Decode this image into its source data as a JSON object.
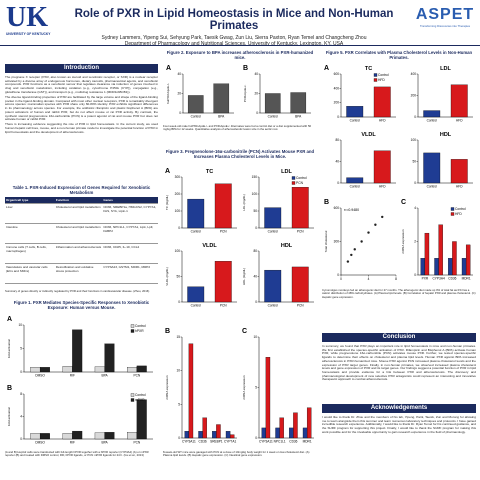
{
  "header": {
    "logo_mark": "UK",
    "logo_text": "UNIVERSITY OF KENTUCKY",
    "title": "Role of PXR in Lipid Homeostasis in Mice and Non-Human Primates",
    "authors": "Sydney Lammers, Yipeng Sui, Sehyung Park, Taesik Gwag, Zun Liu, Sierra Paxton, Ryan Temel and Changcheng Zhou",
    "affiliation": "Department of Pharmacology and Nutritional Sciences, University of Kentucky, Lexington, KY, USA",
    "right_logo": "ASPET",
    "right_logo_sub": "Transforming Discoveries into Therapies"
  },
  "introduction": {
    "heading": "Introduction",
    "paragraphs": [
      "The pregnane X receptor (PXR, also known as steroid and xenobiotic receptor, or SXR) is a nuclear receptor activated by a diverse array of endogenous hormones, dietary steroids, pharmaceutical agents, and xenobiotic compounds. PXR functions as a xenobiotic sensor that regulates clearance via induction of genes involved in drug and xenobiotic metabolism, including oxidation (e.g., cytochrome P450s (CYP)), conjugation (e.g., glutathione transferase (GST)), and transport (e.g., multidrug resistance 1 (MDR1/ABCB1)).",
      "The diverse ligand-binding properties of PXR are facilitated by the large volume and shape of the ligand-binding pocket in the ligand-binding domain. Compared with most other nuclear receptors, PXR is remarkably divergent across species: mammalian species with PXR share only 60-80% identity. PXR exhibits significant differences in its pharmacology across species. For example, the antibiotic rifampicin and plastic bisphenol A (BPA) are potent activators of human and rabbit PXR, but do not affect mouse or rat PXR activity. By contrast, the synthetic steroid pregnenolone 16α-carbonitrile (PCN) is a potent agonist of rat and mouse PXR but does not activate human or rabbit PXR.",
      "There is increasing evidence suggesting the role of PXR in lipid homeostasis. In the current study, we used human hepatic cell lines, mouse, and a non-human primate model to investigate the potential function of PXR in lipid homeostasis and the development of atherosclerosis."
    ]
  },
  "table1": {
    "title": "Table 1. PXR-Induced Expression of Genes Required for Xenobiotic Metabolism",
    "header": [
      "Organ/cell type",
      "Function",
      "Genes"
    ],
    "rows": [
      [
        "Liver",
        "Cholesterol and lipid metabolism",
        "CD36, SREBP1a, HMGCS2, CYP7A1, FAS, SYA, Lipin-1"
      ],
      [
        "Intestine",
        "Cholesterol and lipid metabolism",
        "CD36, NPC1L1, CYP7A1, Lipk, LpF, FABP2"
      ],
      [
        "Immune cells (T cells, B cells, macrophages)",
        "Inflammation and atherosclerosis",
        "CD36, CD25, IL-10, CCL2"
      ],
      [
        "Vasculature and vascular cells (ECs and SMCs)",
        "Detoxification and oxidative stress protection",
        "CYP3A23, GSTM1, MDR1, MRP2"
      ]
    ],
    "note": "Summary of genes directly or indirectly regulated by PXR and their functions in cardiovascular disease. (Zhou, 2016)"
  },
  "figure1": {
    "title": "Figure 1. PXR Mediates Species-Specific Responses to Xenobiotic Exposure: Human versus Mouse.",
    "caption": "(A and B) HepG2 cells were transfected with full-length hPXR together with a hPXR reporter (CYP3A4) (A) or mPXR reporter (B) and treated with DMSO control, RIF, hPXR ligands, or PCN mPXR ligands for 24 h. (Gu et al., 2013)",
    "panels": [
      {
        "type": "bar",
        "label": "A",
        "ylabel": "Fold activation",
        "categories": [
          "DMSO",
          "RIF",
          "BPA",
          "PCN"
        ],
        "series": [
          {
            "name": "Control",
            "color": "#d9d9d9",
            "values": [
              1,
              1.2,
              1.1,
              1
            ]
          },
          {
            "name": "hPXR",
            "color": "#222222",
            "values": [
              1,
              9,
              6,
              1.3
            ]
          }
        ],
        "ylim": [
          0,
          10
        ],
        "yticks": [
          0,
          5,
          10
        ],
        "legend": true
      },
      {
        "type": "bar",
        "label": "B",
        "ylabel": "Fold activation",
        "categories": [
          "DMSO",
          "RIF",
          "BPA",
          "PCN"
        ],
        "series": [
          {
            "name": "Control",
            "color": "#d9d9d9",
            "values": [
              1,
              1,
              1.1,
              1.2
            ]
          },
          {
            "name": "mPXR",
            "color": "#222222",
            "values": [
              1,
              1.4,
              1.2,
              7
            ]
          }
        ],
        "ylim": [
          0,
          8
        ],
        "yticks": [
          0,
          4,
          8
        ],
        "legend": true
      }
    ]
  },
  "figure2": {
    "title": "Figure 2. Exposure to BPA increases atherosclerosis in PXR-humanized mice.",
    "caption": "Four-week-old male huPXR•ApoE-/- and PXR•ApoE-/- littermates were fed a control diet or a diet supplemented with 50 mg/kg BPA for 12 weeks. Quantitative analysis of atherosclerotic lesion size in the aortic root.",
    "panels": [
      {
        "type": "bar",
        "label": "A",
        "ylabel": "huPXR•ApoE-/-",
        "categories": [
          "Control",
          "BPA"
        ],
        "series": [
          {
            "name": "Lesion",
            "color": "#555555",
            "values": [
              18,
              30
            ]
          }
        ],
        "ylim": [
          0,
          40
        ],
        "yticks": [
          0,
          20,
          40
        ]
      },
      {
        "type": "bar",
        "label": "B",
        "ylabel": "PXR•ApoE-/-",
        "categories": [
          "Control",
          "BPA"
        ],
        "series": [
          {
            "name": "Lesion",
            "color": "#555555",
            "values": [
              20,
              21
            ]
          }
        ],
        "ylim": [
          0,
          40
        ],
        "yticks": [
          0,
          20,
          40
        ]
      }
    ]
  },
  "figure3": {
    "title": "Figure 3. Pregnenolone-16α-carbonitrile (PCN) Activates Mouse PXR and Increases Plasma Cholesterol Levels in Mice.",
    "panels": [
      {
        "type": "bar",
        "label": "A",
        "title": "TC",
        "ylabel": "TC (mg/dL)",
        "categories": [
          "Control",
          "PCN"
        ],
        "series": [
          {
            "name": "Control",
            "color": "#1f3c93",
            "values": [
              170,
              null
            ]
          },
          {
            "name": "PCN",
            "color": "#d7191c",
            "values": [
              null,
              260
            ]
          }
        ],
        "ylim": [
          0,
          300
        ],
        "yticks": [
          0,
          100,
          200,
          300
        ]
      },
      {
        "type": "bar",
        "label": "",
        "title": "LDL",
        "ylabel": "LDL (mg/dL)",
        "categories": [
          "Control",
          "PCN"
        ],
        "series": [
          {
            "name": "Control",
            "color": "#1f3c93",
            "values": [
              60,
              null
            ]
          },
          {
            "name": "PCN",
            "color": "#d7191c",
            "values": [
              null,
              120
            ]
          }
        ],
        "ylim": [
          0,
          150
        ],
        "yticks": [
          0,
          50,
          100,
          150
        ],
        "legend": true
      },
      {
        "type": "bar",
        "label": "",
        "title": "VLDL",
        "ylabel": "VLDL (mg/dL)",
        "categories": [
          "Control",
          "PCN"
        ],
        "series": [
          {
            "name": "Control",
            "color": "#1f3c93",
            "values": [
              30,
              null
            ]
          },
          {
            "name": "PCN",
            "color": "#d7191c",
            "values": [
              null,
              80
            ]
          }
        ],
        "ylim": [
          0,
          100
        ],
        "yticks": [
          0,
          50,
          100
        ]
      },
      {
        "type": "bar",
        "label": "",
        "title": "HDL",
        "ylabel": "HDL (mg/dL)",
        "categories": [
          "Control",
          "PCN"
        ],
        "series": [
          {
            "name": "Control",
            "color": "#1f3c93",
            "values": [
              50,
              null
            ]
          },
          {
            "name": "PCN",
            "color": "#d7191c",
            "values": [
              null,
              55
            ]
          }
        ],
        "ylim": [
          0,
          80
        ],
        "yticks": [
          0,
          40,
          80
        ]
      }
    ]
  },
  "figure4": {
    "caption": "8-week-old WT mice were gavaged with PCN at a dose of 10mg/kg body weight for 1 week on low-cholesterol diet. (A) Plasma lipid levels. (B) Hepatic gene expression. (C) Intestinal gene expression.",
    "panels": [
      {
        "type": "bar",
        "label": "B",
        "ylabel": "mRNA expression",
        "categories": [
          "CYP3A11",
          "CD36",
          "SREBP1",
          "CYP7A1"
        ],
        "series": [
          {
            "name": "Control",
            "color": "#1f3c93",
            "values": [
              1,
              1,
              1,
              1
            ]
          },
          {
            "name": "PCN",
            "color": "#d7191c",
            "values": [
              14,
              3,
              2,
              0.5
            ]
          }
        ],
        "ylim": [
          0,
          15
        ],
        "yticks": [
          0,
          5,
          10,
          15
        ]
      },
      {
        "type": "bar",
        "label": "C",
        "ylabel": "mRNA expression",
        "categories": [
          "CYP3A11",
          "NPC1L1",
          "CD36",
          "MDR1"
        ],
        "series": [
          {
            "name": "Control",
            "color": "#1f3c93",
            "values": [
              1,
              1,
              1,
              1
            ]
          },
          {
            "name": "PCN",
            "color": "#d7191c",
            "values": [
              8,
              2,
              2.5,
              3
            ]
          }
        ],
        "ylim": [
          0,
          10
        ],
        "yticks": [
          0,
          5,
          10
        ]
      }
    ]
  },
  "figure5": {
    "title": "Figure 5. PXR Correlates with Plasma Cholesterol Levels in Non-Human Primates.",
    "caption": "Cynomolgus monkeys fed an atherogenic diet for 27 months. The atherogenic diet made up 0% of total fat as 0% has a caloric distribution of 48% carbohydrates. (A) Plasma lipid levels. (B) Correlation of hepatic PXR and plasma cholesterol. (C) Hepatic gene expression.",
    "panels": [
      {
        "type": "bar",
        "label": "A",
        "title": "TC",
        "categories": [
          "Control",
          "HFD"
        ],
        "series": [
          {
            "name": "Control",
            "color": "#1f3c93",
            "values": [
              150,
              null
            ]
          },
          {
            "name": "HFD",
            "color": "#d7191c",
            "values": [
              null,
              420
            ]
          }
        ],
        "ylim": [
          0,
          600
        ],
        "yticks": [
          0,
          200,
          400,
          600
        ],
        "legend": true
      },
      {
        "type": "bar",
        "label": "",
        "title": "LDL",
        "categories": [
          "Control",
          "HFD"
        ],
        "series": [
          {
            "name": "Control",
            "color": "#1f3c93",
            "values": [
              60,
              null
            ]
          },
          {
            "name": "HFD",
            "color": "#d7191c",
            "values": [
              null,
              300
            ]
          }
        ],
        "ylim": [
          0,
          400
        ],
        "yticks": [
          0,
          200,
          400
        ]
      },
      {
        "type": "bar",
        "label": "",
        "title": "VLDL",
        "categories": [
          "Control",
          "HFD"
        ],
        "series": [
          {
            "name": "Control",
            "color": "#1f3c93",
            "values": [
              10,
              null
            ]
          },
          {
            "name": "HFD",
            "color": "#d7191c",
            "values": [
              null,
              60
            ]
          }
        ],
        "ylim": [
          0,
          80
        ],
        "yticks": [
          0,
          40,
          80
        ]
      },
      {
        "type": "bar",
        "label": "",
        "title": "HDL",
        "categories": [
          "Control",
          "HFD"
        ],
        "series": [
          {
            "name": "Control",
            "color": "#1f3c93",
            "values": [
              70,
              null
            ]
          },
          {
            "name": "HFD",
            "color": "#d7191c",
            "values": [
              null,
              55
            ]
          }
        ],
        "ylim": [
          0,
          100
        ],
        "yticks": [
          0,
          50,
          100
        ]
      },
      {
        "type": "scatter",
        "label": "B",
        "ylabel": "Total cholesterol",
        "annotation": "r²=0.9480",
        "x": [
          1,
          1.5,
          2,
          3,
          4,
          5,
          6
        ],
        "series": [
          {
            "name": "PXR",
            "color": "#222222",
            "values": [
              120,
              180,
              230,
              300,
              380,
              450,
              520
            ]
          }
        ],
        "xlim": [
          0,
          8
        ],
        "xticks": [
          0,
          4,
          8
        ],
        "ylim": [
          0,
          600
        ],
        "yticks": [
          0,
          300,
          600
        ]
      },
      {
        "type": "bar",
        "label": "C",
        "ylabel": "mRNA expression",
        "categories": [
          "PXR",
          "CYP3A4",
          "CD36",
          "MDR1"
        ],
        "series": [
          {
            "name": "Control",
            "color": "#1f3c93",
            "values": [
              1,
              1,
              1,
              1
            ]
          },
          {
            "name": "HFD",
            "color": "#d7191c",
            "values": [
              2.5,
              3,
              2,
              1.8
            ]
          }
        ],
        "ylim": [
          0,
          4
        ],
        "yticks": [
          0,
          2,
          4
        ],
        "legend": true
      }
    ]
  },
  "conclusion": {
    "heading": "Conclusion",
    "text": "In summary, we found that PXR plays an important role in lipid homeostasis in mice and non-human primates. We first established the species-specific activation of PXR. Rifampicin and Bisphenol A (BPA) activate human PXR, while pregnenolone 16α-carbonitrile (PCN) activates mouse PXR. Further, we tested species-specific ligands to determine their effects on cholesterol and plasma lipid levels. Human PXR agonist BPA increased atherosclerosis in PXR-humanized mice. Mouse PXR agonist PCN increased plasma cholesterol levels and the expression of PXR target genes. Finally, in non-human primates, we observed increased plasma cholesterol levels and gene expression of PXR and its target genes. Our findings suggest a potential function of PXR in lipid homeostasis and provide evidence for a link between PXR and atherosclerosis. The discovery and pharmacological development of new selective PXR antagonists could represent an interesting and innovative therapeutic approach to combat atherosclerosis."
  },
  "acknowledgements": {
    "heading": "Acknowledgements",
    "text": "I would like to thank Dr. Zhou and the members of his lab, Yipeng, Parik, Taesik, Zun and Murong for allowing me to learn alongside them this summer and learn numerous laboratory techniques and protocols. I have gained incredible research experience. Additionally, I would like to thank Dr. Ryan Temel for his continued guidance, and the SURF program for supporting this project. Finally, I would like to thank the SURF program for making this work possible and for the invaluable opportunity to gain research experience in the field of pharmacology."
  }
}
